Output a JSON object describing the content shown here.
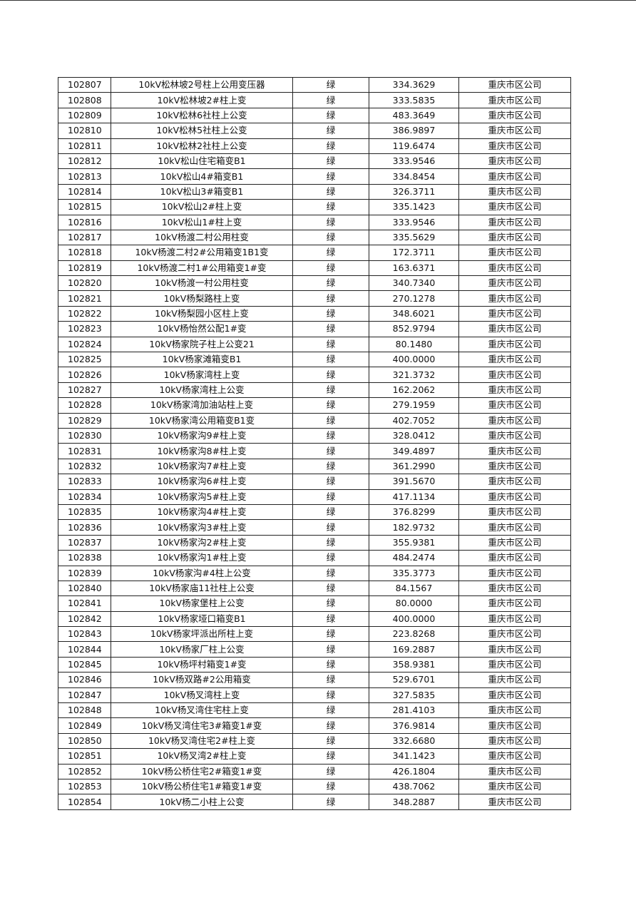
{
  "table": {
    "rows": [
      [
        "102807",
        "10kV松林坡2号柱上公用变压器",
        "绿",
        "334.3629",
        "重庆市区公司"
      ],
      [
        "102808",
        "10kV松林坡2#柱上变",
        "绿",
        "333.5835",
        "重庆市区公司"
      ],
      [
        "102809",
        "10kV松林6社柱上公变",
        "绿",
        "483.3649",
        "重庆市区公司"
      ],
      [
        "102810",
        "10kV松林5社柱上公变",
        "绿",
        "386.9897",
        "重庆市区公司"
      ],
      [
        "102811",
        "10kV松林2社柱上公变",
        "绿",
        "119.6474",
        "重庆市区公司"
      ],
      [
        "102812",
        "10kV松山住宅箱变B1",
        "绿",
        "333.9546",
        "重庆市区公司"
      ],
      [
        "102813",
        "10kV松山4#箱变B1",
        "绿",
        "334.8454",
        "重庆市区公司"
      ],
      [
        "102814",
        "10kV松山3#箱变B1",
        "绿",
        "326.3711",
        "重庆市区公司"
      ],
      [
        "102815",
        "10kV松山2#柱上变",
        "绿",
        "335.1423",
        "重庆市区公司"
      ],
      [
        "102816",
        "10kV松山1#柱上变",
        "绿",
        "333.9546",
        "重庆市区公司"
      ],
      [
        "102817",
        "10kV杨渡二村公用柱变",
        "绿",
        "335.5629",
        "重庆市区公司"
      ],
      [
        "102818",
        "10kV杨渡二村2#公用箱变1B1变",
        "绿",
        "172.3711",
        "重庆市区公司"
      ],
      [
        "102819",
        "10kV杨渡二村1#公用箱变1#变",
        "绿",
        "163.6371",
        "重庆市区公司"
      ],
      [
        "102820",
        "10kV杨渡一村公用柱变",
        "绿",
        "340.7340",
        "重庆市区公司"
      ],
      [
        "102821",
        "10kV杨梨路柱上变",
        "绿",
        "270.1278",
        "重庆市区公司"
      ],
      [
        "102822",
        "10kV杨梨园小区柱上变",
        "绿",
        "348.6021",
        "重庆市区公司"
      ],
      [
        "102823",
        "10kV杨怡然公配1#变",
        "绿",
        "852.9794",
        "重庆市区公司"
      ],
      [
        "102824",
        "10kV杨家院子柱上公变21",
        "绿",
        "80.1480",
        "重庆市区公司"
      ],
      [
        "102825",
        "10kV杨家滩箱变B1",
        "绿",
        "400.0000",
        "重庆市区公司"
      ],
      [
        "102826",
        "10kV杨家湾柱上变",
        "绿",
        "321.3732",
        "重庆市区公司"
      ],
      [
        "102827",
        "10kV杨家湾柱上公变",
        "绿",
        "162.2062",
        "重庆市区公司"
      ],
      [
        "102828",
        "10kV杨家湾加油站柱上变",
        "绿",
        "279.1959",
        "重庆市区公司"
      ],
      [
        "102829",
        "10kV杨家湾公用箱变B1变",
        "绿",
        "402.7052",
        "重庆市区公司"
      ],
      [
        "102830",
        "10kV杨家沟9#柱上变",
        "绿",
        "328.0412",
        "重庆市区公司"
      ],
      [
        "102831",
        "10kV杨家沟8#柱上变",
        "绿",
        "349.4897",
        "重庆市区公司"
      ],
      [
        "102832",
        "10kV杨家沟7#柱上变",
        "绿",
        "361.2990",
        "重庆市区公司"
      ],
      [
        "102833",
        "10kV杨家沟6#柱上变",
        "绿",
        "391.5670",
        "重庆市区公司"
      ],
      [
        "102834",
        "10kV杨家沟5#柱上变",
        "绿",
        "417.1134",
        "重庆市区公司"
      ],
      [
        "102835",
        "10kV杨家沟4#柱上变",
        "绿",
        "376.8299",
        "重庆市区公司"
      ],
      [
        "102836",
        "10kV杨家沟3#柱上变",
        "绿",
        "182.9732",
        "重庆市区公司"
      ],
      [
        "102837",
        "10kV杨家沟2#柱上变",
        "绿",
        "355.9381",
        "重庆市区公司"
      ],
      [
        "102838",
        "10kV杨家沟1#柱上变",
        "绿",
        "484.2474",
        "重庆市区公司"
      ],
      [
        "102839",
        "10kV杨家沟#4柱上公变",
        "绿",
        "335.3773",
        "重庆市区公司"
      ],
      [
        "102840",
        "10kV杨家庙11社柱上公变",
        "绿",
        "84.1567",
        "重庆市区公司"
      ],
      [
        "102841",
        "10kV杨家堡柱上公变",
        "绿",
        "80.0000",
        "重庆市区公司"
      ],
      [
        "102842",
        "10kV杨家垭口箱变B1",
        "绿",
        "400.0000",
        "重庆市区公司"
      ],
      [
        "102843",
        "10kV杨家坪派出所柱上变",
        "绿",
        "223.8268",
        "重庆市区公司"
      ],
      [
        "102844",
        "10kV杨家厂柱上公变",
        "绿",
        "169.2887",
        "重庆市区公司"
      ],
      [
        "102845",
        "10kV杨坪村箱变1#变",
        "绿",
        "358.9381",
        "重庆市区公司"
      ],
      [
        "102846",
        "10kV杨双路#2公用箱变",
        "绿",
        "529.6701",
        "重庆市区公司"
      ],
      [
        "102847",
        "10kV杨叉湾柱上变",
        "绿",
        "327.5835",
        "重庆市区公司"
      ],
      [
        "102848",
        "10kV杨叉湾住宅柱上变",
        "绿",
        "281.4103",
        "重庆市区公司"
      ],
      [
        "102849",
        "10kV杨叉湾住宅3#箱变1#变",
        "绿",
        "376.9814",
        "重庆市区公司"
      ],
      [
        "102850",
        "10kV杨叉湾住宅2#柱上变",
        "绿",
        "332.6680",
        "重庆市区公司"
      ],
      [
        "102851",
        "10kV杨叉湾2#柱上变",
        "绿",
        "341.1423",
        "重庆市区公司"
      ],
      [
        "102852",
        "10kV杨公桥住宅2#箱变1#变",
        "绿",
        "426.1804",
        "重庆市区公司"
      ],
      [
        "102853",
        "10kV杨公桥住宅1#箱变1#变",
        "绿",
        "438.7062",
        "重庆市区公司"
      ],
      [
        "102854",
        "10kV杨二小柱上公变",
        "绿",
        "348.2887",
        "重庆市区公司"
      ]
    ]
  }
}
